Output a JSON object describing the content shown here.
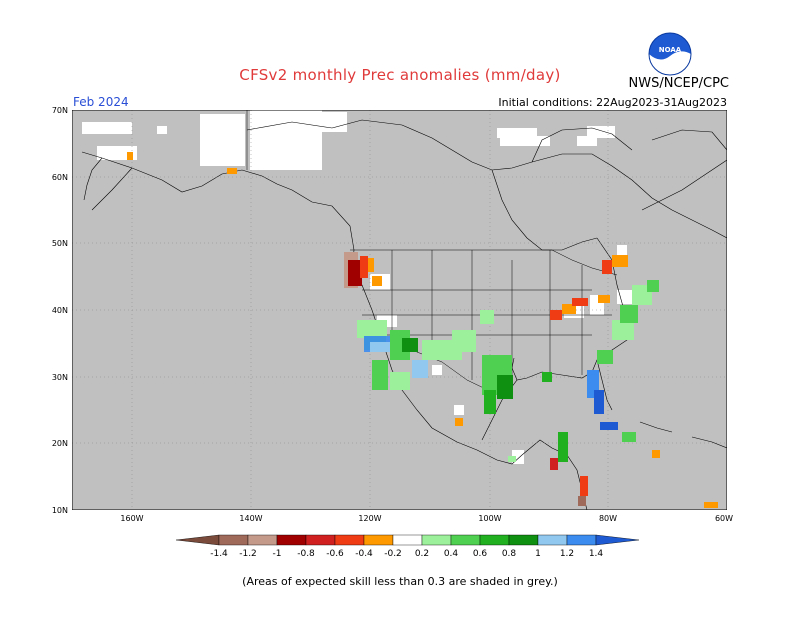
{
  "title": "CFSv2 monthly Prec anomalies (mm/day)",
  "org": "NWS/NCEP/CPC",
  "logo_text": "NOAA",
  "month": "Feb 2024",
  "initial_conditions": "Initial conditions: 22Aug2023-31Aug2023",
  "note": "(Areas of expected skill less than 0.3 are shaded in grey.)",
  "lat_labels": [
    "70N",
    "60N",
    "50N",
    "40N",
    "30N",
    "20N",
    "10N"
  ],
  "lon_labels": [
    "160W",
    "140W",
    "120W",
    "100W",
    "80W",
    "60W"
  ],
  "colorbar": {
    "labels": [
      "-1.4",
      "-1.2",
      "-1",
      "-0.8",
      "-0.6",
      "-0.4",
      "-0.2",
      "0.2",
      "0.4",
      "0.6",
      "0.8",
      "1",
      "1.2",
      "1.4"
    ],
    "colors": [
      "#7a4a3a",
      "#a06a5a",
      "#c49a8a",
      "#a00000",
      "#d02020",
      "#f03c14",
      "#ff9900",
      "#ffffff",
      "#9cf09c",
      "#50d050",
      "#20b020",
      "#109010",
      "#90c8f0",
      "#3c8cf0",
      "#1e5ad2"
    ]
  },
  "colors": {
    "grey": "#c0c0c0",
    "title": "#e03a3a",
    "month": "#2a4fd6"
  }
}
